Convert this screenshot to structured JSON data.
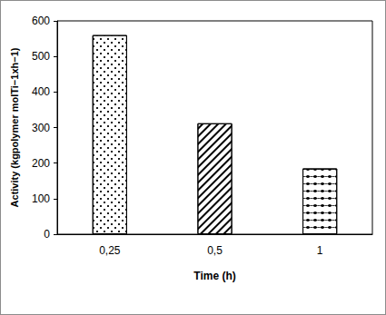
{
  "chart_data": {
    "type": "bar",
    "xlabel": "Time (h)",
    "ylabel": "Activity (kgpolymer molTi−1xh−1)",
    "categories": [
      "0,25",
      "0,5",
      "1"
    ],
    "values": [
      560,
      312,
      185
    ],
    "color": "#ffffff",
    "ylim": [
      0,
      600
    ],
    "yticks": [
      0,
      100,
      200,
      300,
      400,
      500,
      600
    ],
    "grid": false
  }
}
